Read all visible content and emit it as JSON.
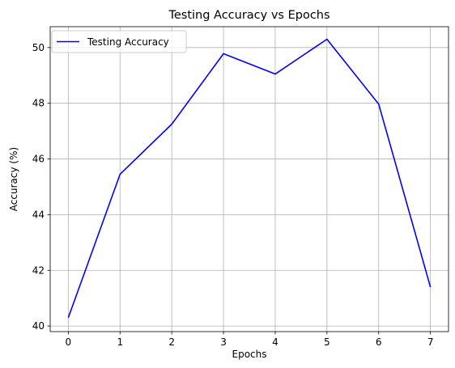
{
  "chart_data": {
    "type": "line",
    "title": "Testing Accuracy vs Epochs",
    "xlabel": "Epochs",
    "ylabel": "Accuracy (%)",
    "x": [
      0,
      1,
      2,
      3,
      4,
      5,
      6,
      7
    ],
    "xlim": [
      -0.35,
      7.35
    ],
    "ylim": [
      39.8,
      50.75
    ],
    "xticks": [
      0,
      1,
      2,
      3,
      4,
      5,
      6,
      7
    ],
    "yticks": [
      40,
      42,
      44,
      46,
      48,
      50
    ],
    "grid": true,
    "legend": {
      "position": "top-left"
    },
    "series": [
      {
        "name": "Testing Accuracy",
        "color": "#0000ff",
        "values": [
          40.3,
          45.45,
          47.25,
          49.78,
          49.05,
          50.3,
          47.97,
          41.4
        ]
      }
    ]
  }
}
